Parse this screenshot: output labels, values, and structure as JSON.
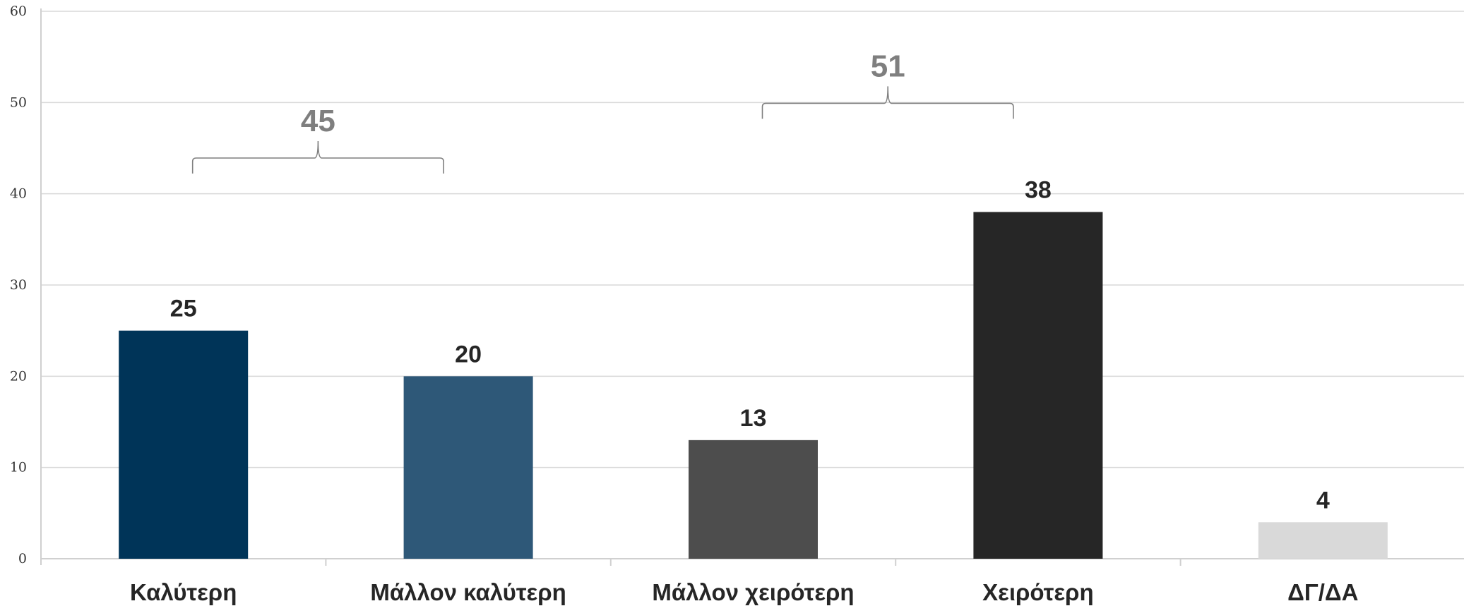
{
  "chart_data": {
    "type": "bar",
    "categories": [
      "Καλύτερη",
      "Μάλλον καλύτερη",
      "Μάλλον χειρότερη",
      "Χειρότερη",
      "ΔΓ/ΔΑ"
    ],
    "values": [
      25,
      20,
      13,
      38,
      4
    ],
    "data_labels": [
      "25",
      "20",
      "13",
      "38",
      "4"
    ],
    "bar_colors": [
      "#003458",
      "#2e5878",
      "#4d4d4d",
      "#262626",
      "#d9d9d9"
    ],
    "ylim": [
      0,
      60
    ],
    "yticks": [
      0,
      10,
      20,
      30,
      40,
      50,
      60
    ],
    "ytick_labels": [
      "0",
      "10",
      "20",
      "30",
      "40",
      "50",
      "60"
    ],
    "grid": true,
    "title": "",
    "xlabel": "",
    "ylabel": "",
    "legend": "none",
    "groupings": [
      {
        "label": "45",
        "value": 45,
        "from_category": 0,
        "to_category": 1
      },
      {
        "label": "51",
        "value": 51,
        "from_category": 2,
        "to_category": 3
      }
    ]
  }
}
